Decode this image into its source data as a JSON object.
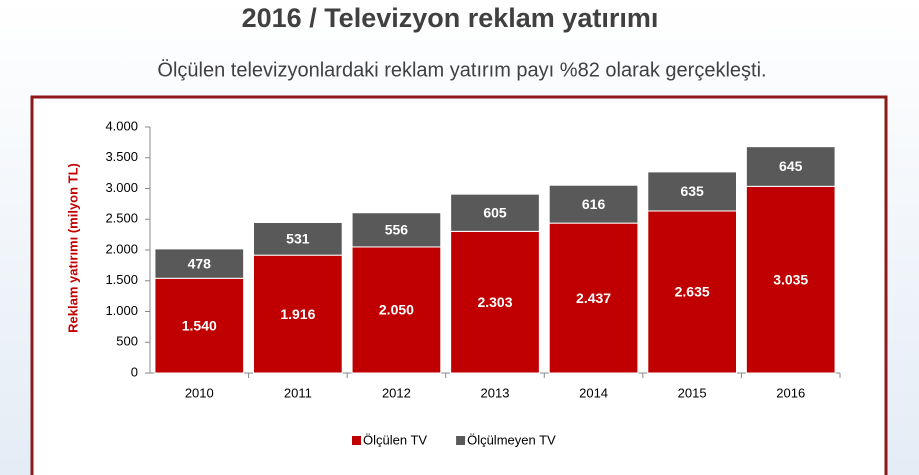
{
  "chart_data": {
    "type": "stacked_bar",
    "title": "2016 / Televizyon reklam yatırımı",
    "subtitle": "Ölçülen televizyonlardaki reklam yatırım payı %82 olarak gerçekleşti.",
    "y_label": "Reklam yatırımı (milyon TL)",
    "categories": [
      "2010",
      "2011",
      "2012",
      "2013",
      "2014",
      "2015",
      "2016"
    ],
    "series": [
      {
        "name": "Ölçülen TV",
        "color": "#c00000",
        "values": [
          1540,
          1916,
          2050,
          2303,
          2437,
          2635,
          3035
        ],
        "value_labels": [
          "1.540",
          "1.916",
          "2.050",
          "2.303",
          "2.437",
          "2.635",
          "3.035"
        ]
      },
      {
        "name": "Ölçülmeyen TV",
        "color": "#595959",
        "values": [
          478,
          531,
          556,
          605,
          616,
          635,
          645
        ]
      }
    ],
    "ylim": [
      0,
      4000
    ],
    "yticks": [
      0,
      500,
      {
        "value": 1000,
        "label": "1.000"
      },
      {
        "value": 1500,
        "label": "1.500"
      },
      {
        "value": 2000,
        "label": "2.000"
      },
      {
        "value": 2500,
        "label": "2.500"
      },
      {
        "value": 3000,
        "label": "3.000"
      },
      {
        "value": 3500,
        "label": "3.500"
      },
      {
        "value": 4000,
        "label": "4.000"
      }
    ],
    "legend": "bottom"
  }
}
